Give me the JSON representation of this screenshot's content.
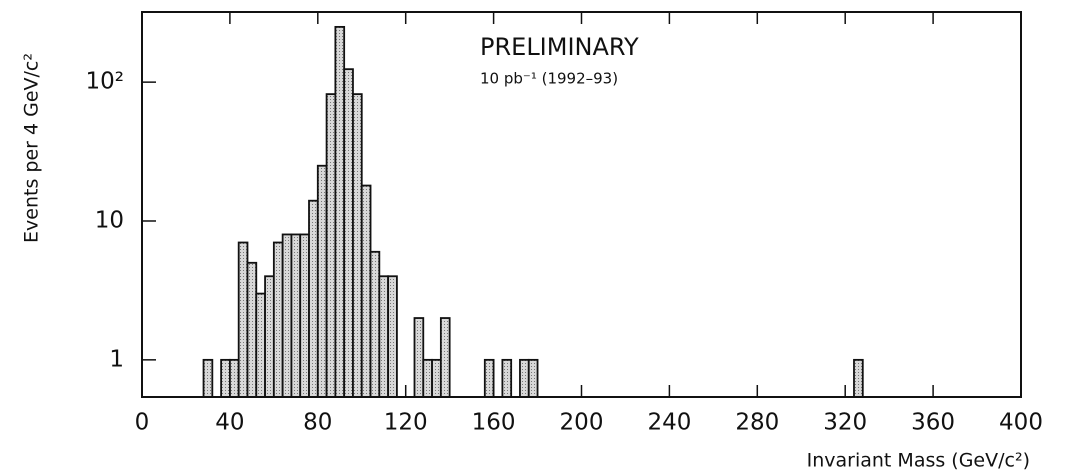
{
  "chart_data": {
    "type": "histogram",
    "title": "PRELIMINARY",
    "subtitle": "10 pb⁻¹  (1992–93)",
    "x_label": "Invariant Mass (GeV/c²)",
    "y_label": "Events per 4 GeV/c²",
    "bins": [
      0,
      4,
      8,
      12,
      16,
      20,
      24,
      28,
      32,
      36,
      40,
      44,
      48,
      52,
      56,
      60,
      64,
      68,
      72,
      76,
      80,
      84,
      88,
      92,
      96,
      100,
      104,
      108,
      112,
      116,
      120,
      124,
      128,
      132,
      136,
      140,
      144,
      148,
      152,
      156,
      160,
      164,
      168,
      172,
      176,
      180,
      184,
      188,
      192,
      196,
      200,
      204,
      208,
      212,
      216,
      220,
      224,
      228,
      232,
      236,
      240,
      244,
      248,
      252,
      256,
      260,
      264,
      268,
      272,
      276,
      280,
      284,
      288,
      292,
      296,
      300,
      304,
      308,
      312,
      316,
      320,
      324,
      328,
      332,
      336,
      340,
      344,
      348,
      352,
      356,
      360,
      364,
      368,
      372,
      376,
      380,
      384,
      388,
      392,
      396,
      400
    ],
    "values": [
      0,
      0,
      0,
      0,
      0,
      0,
      0,
      1,
      0,
      1,
      1,
      7,
      5,
      3,
      4,
      7,
      8,
      8,
      8,
      14,
      25,
      82,
      250,
      124,
      82,
      18,
      6,
      4,
      4,
      0,
      0,
      2,
      1,
      1,
      2,
      0,
      0,
      0,
      0,
      1,
      0,
      1,
      0,
      1,
      1,
      0,
      0,
      0,
      0,
      0,
      0,
      0,
      0,
      0,
      0,
      0,
      0,
      0,
      0,
      0,
      0,
      0,
      0,
      0,
      0,
      0,
      0,
      0,
      0,
      0,
      0,
      0,
      0,
      0,
      0,
      0,
      0,
      0,
      0,
      0,
      0,
      1,
      0,
      0,
      0,
      0,
      0,
      0,
      0,
      0,
      0,
      0,
      0,
      0,
      0,
      0,
      0,
      0,
      0,
      0
    ],
    "color": "#c4c4c4",
    "xlim": [
      0,
      400
    ],
    "xticks": [
      0,
      40,
      80,
      120,
      160,
      200,
      240,
      280,
      320,
      360,
      400
    ],
    "ylim": [
      0.54,
      320
    ],
    "yticks": [
      1,
      10,
      {
        "value": 100,
        "label": "10²"
      }
    ],
    "log_y": true,
    "grid": false
  }
}
